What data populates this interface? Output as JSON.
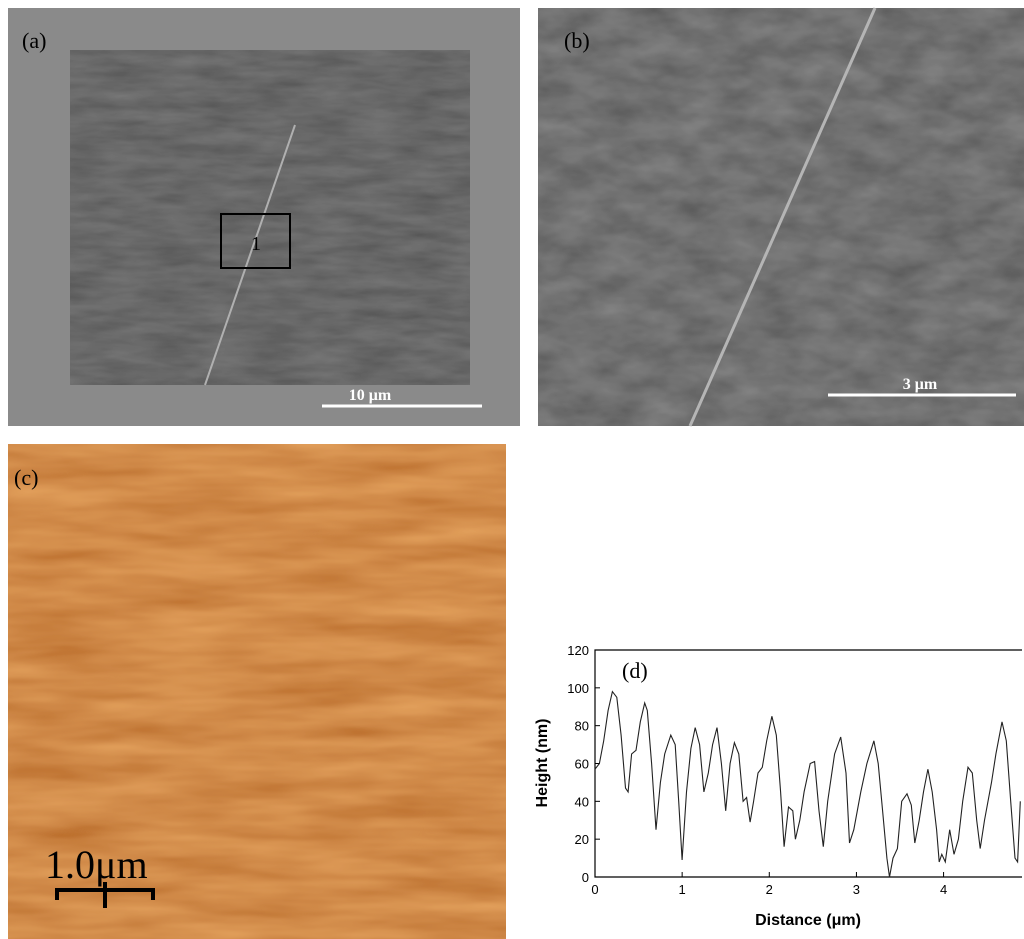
{
  "panels": {
    "a": {
      "label": "(a)",
      "box_label": "1",
      "scale": "10 μm"
    },
    "b": {
      "label": "(b)",
      "scale": "3 μm"
    },
    "c": {
      "label": "(c)",
      "scale": "1.0μm"
    }
  },
  "chart_data": {
    "type": "line",
    "annotation": "(d)",
    "x_label": "Distance (μm)",
    "y_label": "Height (nm)",
    "xlim": [
      0,
      4.9
    ],
    "ylim": [
      0,
      120
    ],
    "xticks": [
      0,
      1,
      2,
      3,
      4
    ],
    "yticks": [
      0,
      20,
      40,
      60,
      80,
      100,
      120
    ],
    "color": "#222222",
    "x": [
      0,
      0.05,
      0.1,
      0.15,
      0.2,
      0.25,
      0.3,
      0.35,
      0.38,
      0.42,
      0.47,
      0.52,
      0.57,
      0.6,
      0.65,
      0.7,
      0.75,
      0.8,
      0.87,
      0.92,
      0.96,
      1.0,
      1.05,
      1.1,
      1.15,
      1.2,
      1.25,
      1.3,
      1.35,
      1.4,
      1.45,
      1.5,
      1.55,
      1.6,
      1.65,
      1.7,
      1.74,
      1.78,
      1.82,
      1.87,
      1.92,
      1.97,
      2.03,
      2.08,
      2.13,
      2.17,
      2.22,
      2.27,
      2.3,
      2.35,
      2.4,
      2.47,
      2.52,
      2.57,
      2.62,
      2.67,
      2.75,
      2.82,
      2.88,
      2.92,
      2.97,
      3.05,
      3.12,
      3.2,
      3.25,
      3.3,
      3.35,
      3.38,
      3.42,
      3.47,
      3.52,
      3.58,
      3.63,
      3.67,
      3.72,
      3.77,
      3.82,
      3.87,
      3.92,
      3.95,
      3.98,
      4.02,
      4.07,
      4.12,
      4.17,
      4.22,
      4.28,
      4.33,
      4.38,
      4.42,
      4.47,
      4.55,
      4.6,
      4.67,
      4.72,
      4.77,
      4.82,
      4.85,
      4.88
    ],
    "values": [
      57,
      60,
      72,
      88,
      98,
      95,
      75,
      47,
      45,
      65,
      67,
      82,
      92,
      88,
      60,
      25,
      50,
      65,
      75,
      70,
      40,
      9,
      45,
      68,
      79,
      70,
      45,
      55,
      70,
      79,
      60,
      35,
      60,
      71,
      65,
      40,
      42,
      29,
      40,
      55,
      58,
      72,
      85,
      75,
      45,
      16,
      37,
      35,
      20,
      30,
      45,
      60,
      61,
      35,
      16,
      40,
      65,
      74,
      55,
      18,
      25,
      45,
      60,
      72,
      60,
      35,
      10,
      0,
      10,
      15,
      40,
      44,
      38,
      18,
      30,
      45,
      57,
      45,
      25,
      8,
      12,
      8,
      25,
      12,
      20,
      40,
      58,
      55,
      30,
      15,
      30,
      50,
      65,
      82,
      72,
      40,
      10,
      8,
      40
    ]
  }
}
